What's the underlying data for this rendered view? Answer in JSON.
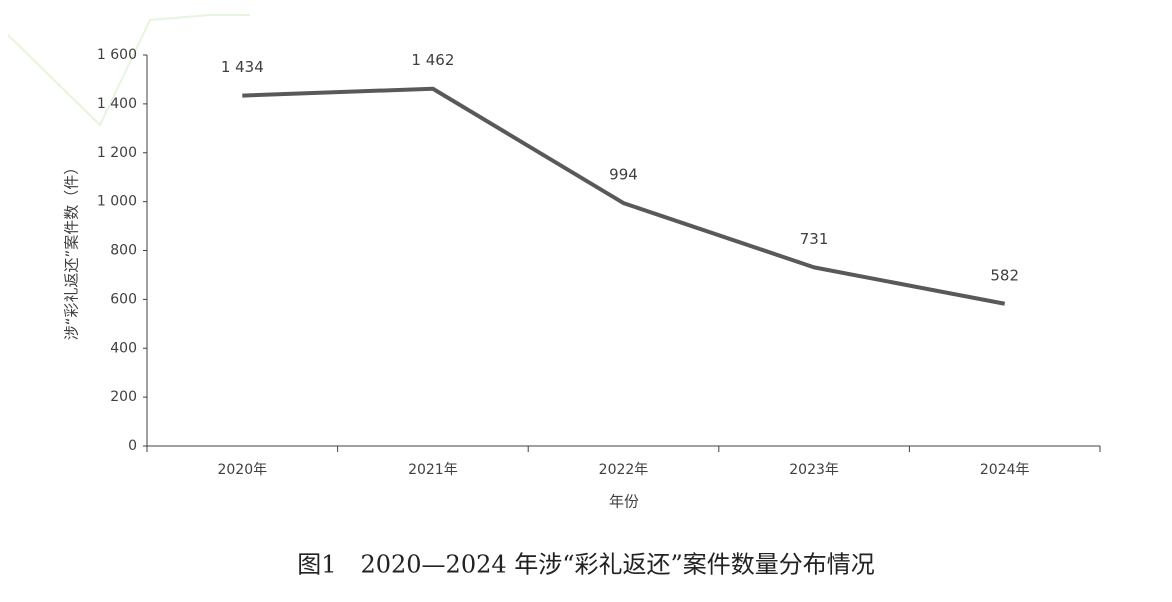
{
  "chart_data": {
    "type": "line",
    "title": "图1　2020—2024 年涉“彩礼返还”案件数量分布情况",
    "x_label": "年份",
    "y_label": "涉“彩礼返还”案件数（件）",
    "categories": [
      "2020年",
      "2021年",
      "2022年",
      "2023年",
      "2024年"
    ],
    "series": [
      {
        "color": "#595959",
        "values": [
          1434,
          1462,
          994,
          731,
          582
        ],
        "value_labels": [
          "1 434",
          "1 462",
          "994",
          "731",
          "582"
        ]
      }
    ],
    "ylim": [
      0,
      1600
    ],
    "yticks": [
      0,
      200,
      400,
      600,
      800,
      {
        "value": 1000,
        "label": "1 000"
      },
      {
        "value": 1200,
        "label": "1 200"
      },
      {
        "value": 1400,
        "label": "1 400"
      },
      {
        "value": 1600,
        "label": "1 600"
      }
    ],
    "grid": false
  }
}
